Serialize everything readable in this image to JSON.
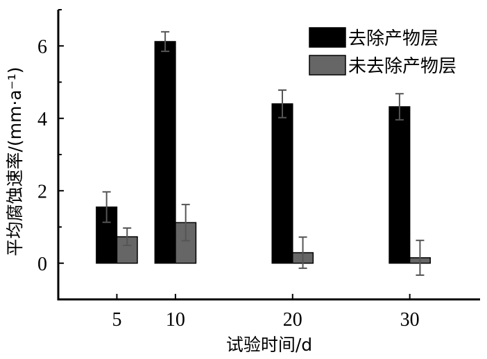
{
  "chart_data": {
    "type": "bar",
    "categories": [
      "5",
      "10",
      "20",
      "30"
    ],
    "series": [
      {
        "name": "去除产物层",
        "color": "#000000",
        "values": [
          1.55,
          6.12,
          4.4,
          4.32
        ],
        "errors": [
          0.42,
          0.27,
          0.38,
          0.36
        ]
      },
      {
        "name": "未去除产物层",
        "color": "#666666",
        "values": [
          0.73,
          1.12,
          0.29,
          0.15
        ],
        "errors": [
          0.24,
          0.5,
          0.43,
          0.48
        ]
      }
    ],
    "xlabel": "试验时间/d",
    "ylabel": "平均腐蚀速率/(mm·a⁻¹)",
    "ylim": [
      -1,
      7
    ],
    "yticks": [
      0,
      2,
      4,
      6
    ],
    "xlim": [
      0,
      36
    ],
    "legend_position": "top-right",
    "grid": false
  }
}
